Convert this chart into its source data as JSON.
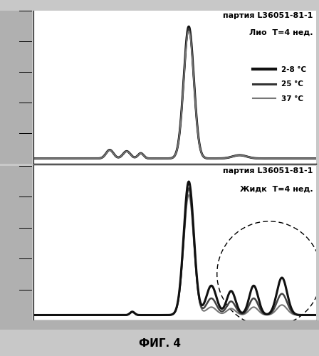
{
  "title_top": "партия L36051-81-1",
  "subtitle_top": "Лио  Т=4 нед.",
  "title_bottom": "партия L36051-81-1",
  "subtitle_bottom": "Жидк  Т=4 нед.",
  "fig_label": "ФИГ. 4",
  "legend_labels": [
    "2-8 °C",
    "25 °C",
    "37 °C"
  ],
  "line_colors_top": [
    "#111111",
    "#333333",
    "#777777"
  ],
  "line_colors_bottom": [
    "#777777",
    "#444444",
    "#111111"
  ],
  "background_color": "#c8c8c8",
  "plot_background": "#ffffff",
  "axis_strip_color": "#b0b0b0"
}
